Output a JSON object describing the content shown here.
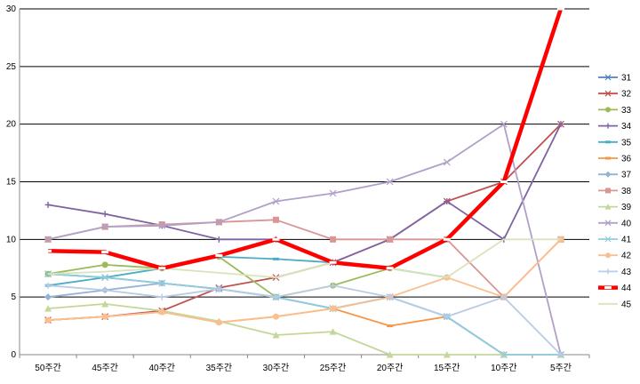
{
  "chart_data": {
    "type": "line",
    "title": "",
    "xlabel": "",
    "ylabel": "",
    "ylim": [
      0,
      30
    ],
    "yticks": [
      "0",
      "5",
      "10",
      "15",
      "20",
      "25",
      "30"
    ],
    "categories": [
      "50주간",
      "45주간",
      "40주간",
      "35주간",
      "30주간",
      "25주간",
      "20주간",
      "15주간",
      "10주간",
      "5주간"
    ],
    "grid": "horizontal",
    "legend": "right",
    "series": [
      {
        "name": "31",
        "color": "#4f81bd",
        "marker": "x",
        "values": [
          7,
          6.7,
          6.2,
          5.7,
          5.0,
          4.0,
          5.0,
          3.3,
          0,
          0
        ]
      },
      {
        "name": "32",
        "color": "#c0504d",
        "marker": "x",
        "values": [
          3,
          3.3,
          3.8,
          5.8,
          6.7,
          8,
          10,
          13.3,
          15,
          20
        ]
      },
      {
        "name": "33",
        "color": "#9bbb59",
        "marker": "circle",
        "values": [
          7,
          7.8,
          7.5,
          8.5,
          5.0,
          6,
          7.5,
          6.7,
          null,
          null
        ]
      },
      {
        "name": "34",
        "color": "#8064a2",
        "marker": "plus",
        "values": [
          13,
          12.2,
          11.2,
          10,
          10,
          8,
          10,
          13.3,
          10,
          20
        ]
      },
      {
        "name": "35",
        "color": "#4bacc6",
        "marker": "dash",
        "values": [
          6,
          6.7,
          7.5,
          8.5,
          8.3,
          8,
          7.5,
          6.7,
          null,
          null
        ]
      },
      {
        "name": "36",
        "color": "#f79646",
        "marker": "dash",
        "values": [
          3,
          3.3,
          3.7,
          2.8,
          3.3,
          4,
          2.5,
          3.3,
          null,
          null
        ]
      },
      {
        "name": "37",
        "color": "#95b3d7",
        "marker": "diamond",
        "values": [
          5,
          5.6,
          6.2,
          5.7,
          5.0,
          4,
          5,
          3.3,
          0,
          0
        ]
      },
      {
        "name": "38",
        "color": "#da9694",
        "marker": "square",
        "values": [
          10,
          11.1,
          11.3,
          11.5,
          11.7,
          10,
          10,
          10,
          5,
          10
        ]
      },
      {
        "name": "39",
        "color": "#c4d79b",
        "marker": "triangle",
        "values": [
          4,
          4.4,
          3.8,
          2.9,
          1.7,
          2,
          0,
          0,
          0,
          0
        ]
      },
      {
        "name": "40",
        "color": "#b1a0c7",
        "marker": "x",
        "values": [
          10,
          11.1,
          11.2,
          11.5,
          13.3,
          14,
          15,
          16.7,
          20,
          0
        ]
      },
      {
        "name": "41",
        "color": "#92cddc",
        "marker": "x",
        "values": [
          7,
          6.7,
          6.2,
          5.7,
          5.0,
          4,
          5,
          3.3,
          0,
          0
        ]
      },
      {
        "name": "42",
        "color": "#fabf8f",
        "marker": "circle",
        "values": [
          3,
          3.3,
          3.7,
          2.8,
          3.3,
          4,
          5,
          6.7,
          5,
          10
        ]
      },
      {
        "name": "43",
        "color": "#b8cce4",
        "marker": "plus",
        "values": [
          6,
          5.6,
          5.0,
          5.7,
          5.0,
          6,
          5,
          3.3,
          5,
          0
        ]
      },
      {
        "name": "44",
        "color": "#ff0000",
        "marker": "dash",
        "values": [
          9,
          8.9,
          7.5,
          8.6,
          10,
          8,
          7.5,
          10,
          15,
          30
        ]
      },
      {
        "name": "45",
        "color": "#d7e4bc",
        "marker": "none",
        "values": [
          7,
          7.2,
          7.5,
          7.1,
          6.7,
          8,
          7.5,
          6.7,
          10,
          10
        ]
      }
    ]
  }
}
